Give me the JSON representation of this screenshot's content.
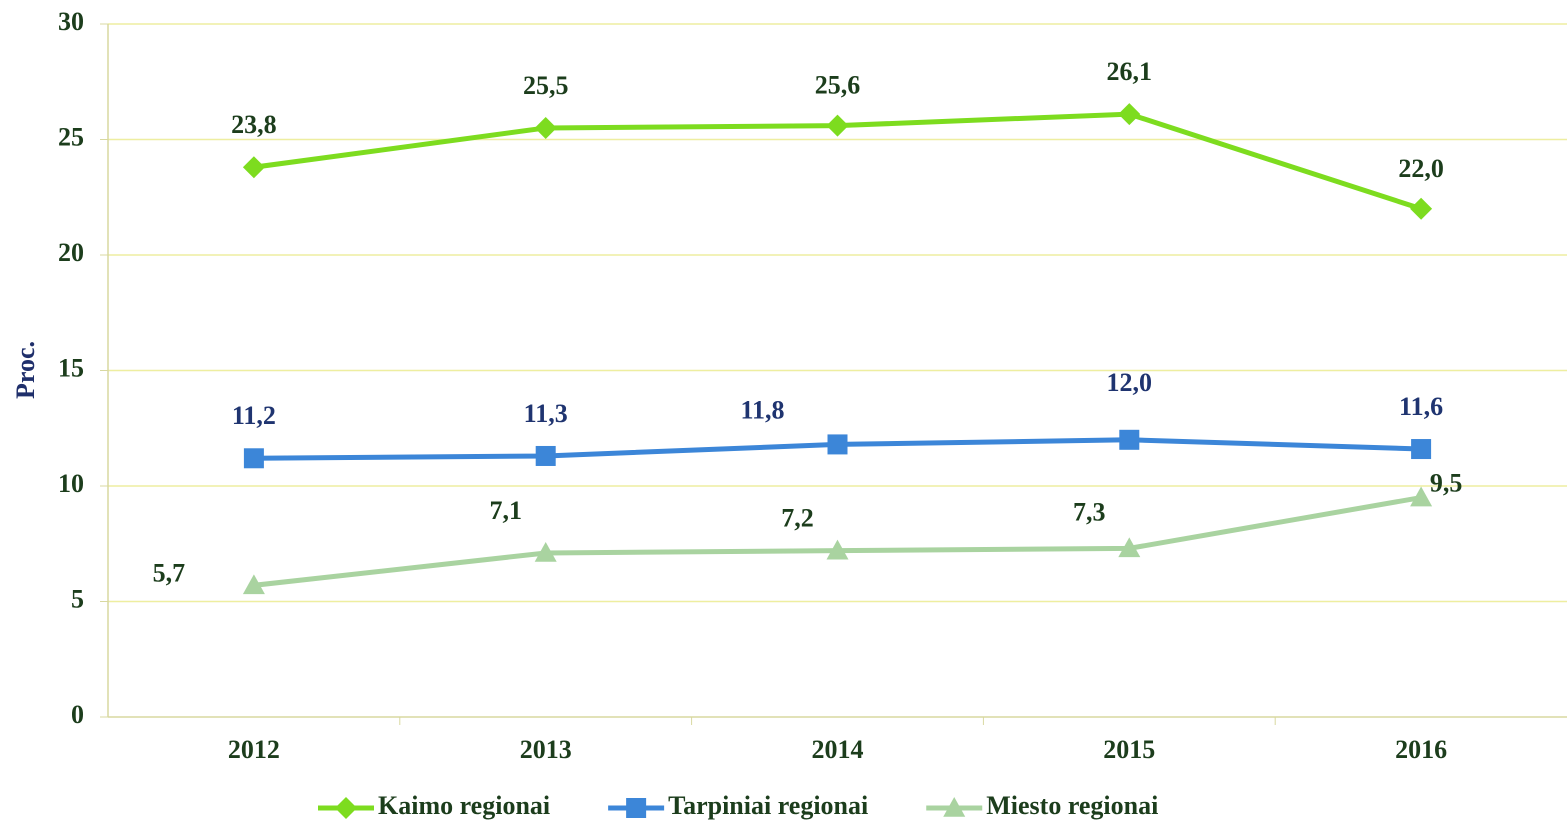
{
  "chart_data": {
    "type": "line",
    "y_label": "Proc.",
    "categories": [
      "2012",
      "2013",
      "2014",
      "2015",
      "2016"
    ],
    "series": [
      {
        "name": "Kaimo regionai",
        "color": "#7ddc1f",
        "marker": "diamond",
        "values": [
          23.8,
          25.5,
          25.6,
          26.1,
          22.0
        ],
        "value_labels": [
          "23,8",
          "25,5",
          "25,6",
          "26,1",
          "22,0"
        ]
      },
      {
        "name": "Tarpiniai regionai",
        "color": "#3c86d8",
        "marker": "square",
        "values": [
          11.2,
          11.3,
          11.8,
          12.0,
          11.6
        ],
        "value_labels": [
          "11,2",
          "11,3",
          "11,8",
          "12,0",
          "11,6"
        ]
      },
      {
        "name": "Miesto regionai",
        "color": "#a9d3a0",
        "marker": "triangle",
        "values": [
          5.7,
          7.1,
          7.2,
          7.3,
          9.5
        ],
        "value_labels": [
          "5,7",
          "7,1",
          "7,2",
          "7,3",
          "9,5"
        ]
      }
    ],
    "ylim": [
      0,
      30
    ],
    "yticks": [
      0,
      5,
      10,
      15,
      20,
      25,
      30
    ],
    "grid": true,
    "legend": "bottom"
  }
}
